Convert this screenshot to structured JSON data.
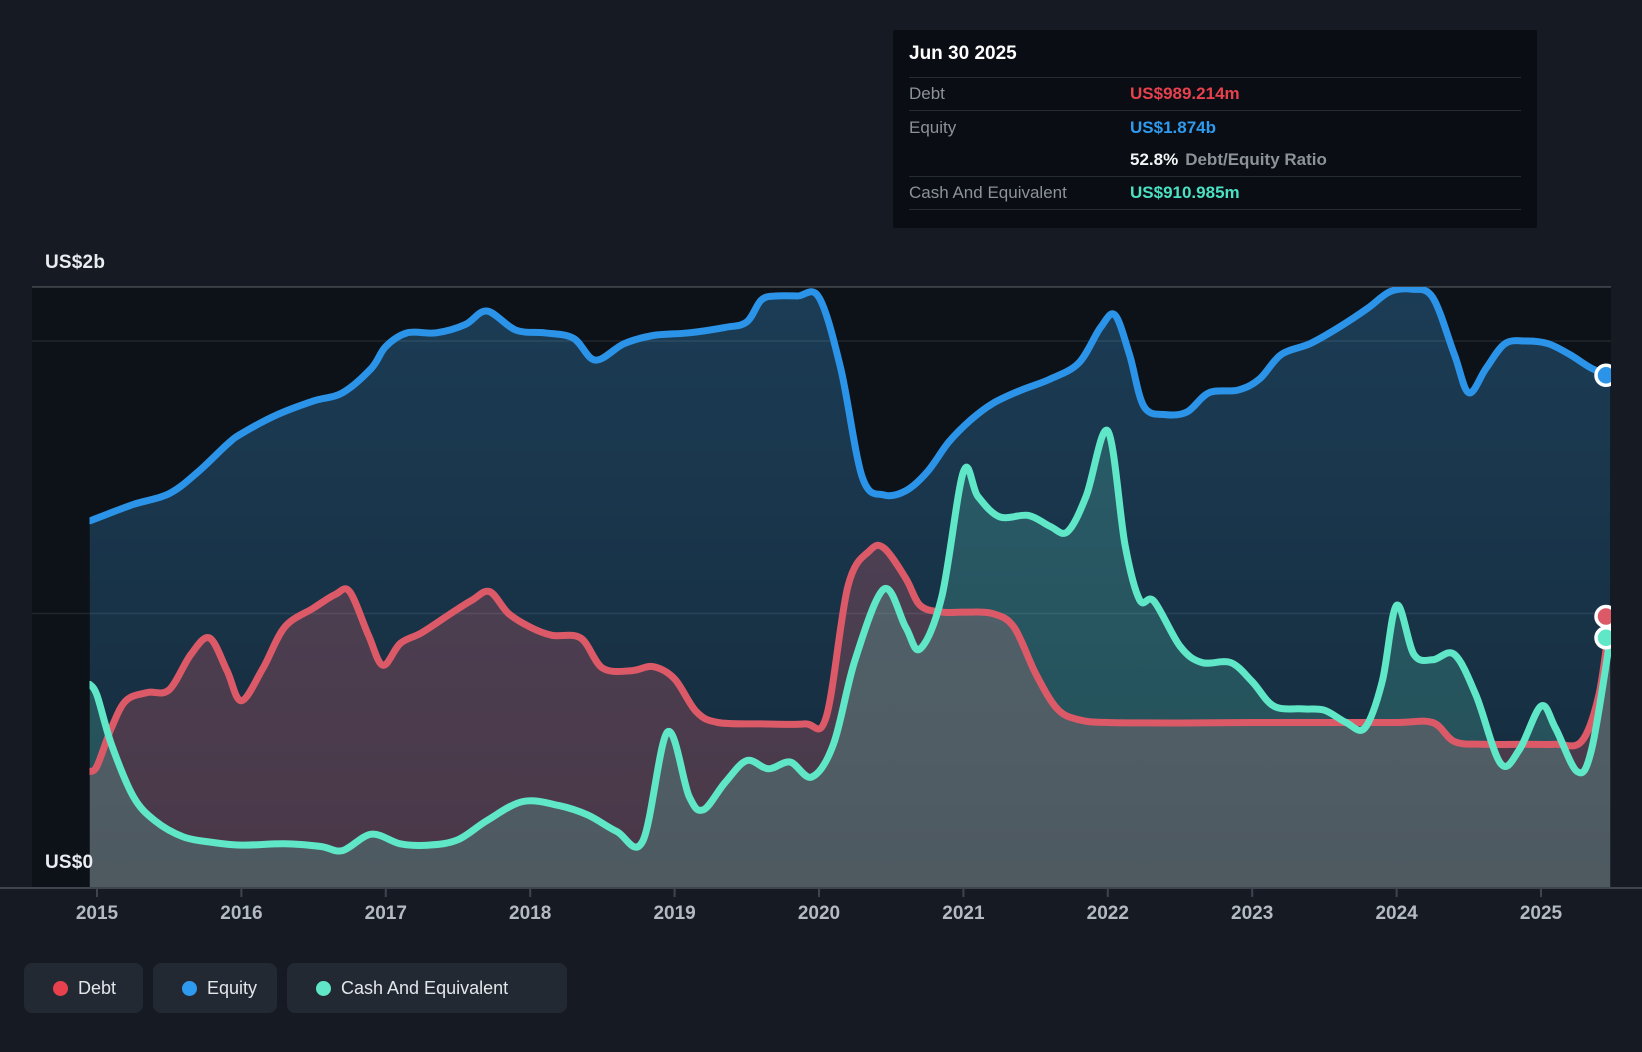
{
  "page": {
    "background": "#151a23",
    "plot_background": "#0d1218"
  },
  "colors": {
    "debt_line": "#dc5a68",
    "debt_accent": "#e6414d",
    "equity_line": "#2b94e8",
    "equity_accent": "#2e9bf0",
    "cash_line": "#5fe7c8",
    "cash_accent": "#4be1c3"
  },
  "tooltip": {
    "date": "Jun 30 2025",
    "debt_label": "Debt",
    "debt_value": "US$989.214m",
    "equity_label": "Equity",
    "equity_value": "US$1.874b",
    "ratio_value": "52.8%",
    "ratio_label": "Debt/Equity Ratio",
    "cash_label": "Cash And Equivalent",
    "cash_value": "US$910.985m"
  },
  "axis": {
    "y_top_label": "US$2b",
    "y_zero_label": "US$0"
  },
  "legend": {
    "debt": "Debt",
    "equity": "Equity",
    "cash": "Cash And Equivalent"
  },
  "chart_data": {
    "type": "area",
    "unit": "US$ billions",
    "xlim": [
      2014.95,
      2025.5
    ],
    "ylim": [
      0,
      2.2
    ],
    "grid": {
      "y_values": [
        0,
        1,
        2
      ],
      "y_labeled": {
        "2": "US$2b",
        "0": "US$0"
      }
    },
    "legend_position": "bottom-left",
    "x_ticks": [
      "2015",
      "2016",
      "2017",
      "2018",
      "2019",
      "2020",
      "2021",
      "2022",
      "2023",
      "2024",
      "2025"
    ],
    "series": [
      {
        "name": "Equity",
        "color": "#2b94e8",
        "points": [
          [
            2014.95,
            1.34
          ],
          [
            2015.0,
            1.35
          ],
          [
            2015.25,
            1.4
          ],
          [
            2015.5,
            1.44
          ],
          [
            2015.7,
            1.52
          ],
          [
            2015.9,
            1.62
          ],
          [
            2016.0,
            1.66
          ],
          [
            2016.25,
            1.73
          ],
          [
            2016.5,
            1.78
          ],
          [
            2016.7,
            1.81
          ],
          [
            2016.9,
            1.9
          ],
          [
            2017.0,
            1.98
          ],
          [
            2017.15,
            2.03
          ],
          [
            2017.35,
            2.03
          ],
          [
            2017.55,
            2.06
          ],
          [
            2017.7,
            2.11
          ],
          [
            2017.9,
            2.04
          ],
          [
            2018.1,
            2.03
          ],
          [
            2018.3,
            2.01
          ],
          [
            2018.45,
            1.93
          ],
          [
            2018.65,
            1.99
          ],
          [
            2018.85,
            2.02
          ],
          [
            2019.1,
            2.03
          ],
          [
            2019.35,
            2.05
          ],
          [
            2019.5,
            2.07
          ],
          [
            2019.6,
            2.15
          ],
          [
            2019.7,
            2.165
          ],
          [
            2019.85,
            2.165
          ],
          [
            2020.0,
            2.16
          ],
          [
            2020.15,
            1.9
          ],
          [
            2020.3,
            1.5
          ],
          [
            2020.45,
            1.435
          ],
          [
            2020.6,
            1.45
          ],
          [
            2020.75,
            1.52
          ],
          [
            2020.9,
            1.63
          ],
          [
            2021.05,
            1.71
          ],
          [
            2021.2,
            1.77
          ],
          [
            2021.4,
            1.82
          ],
          [
            2021.6,
            1.86
          ],
          [
            2021.8,
            1.92
          ],
          [
            2021.95,
            2.05
          ],
          [
            2022.05,
            2.095
          ],
          [
            2022.15,
            1.95
          ],
          [
            2022.25,
            1.76
          ],
          [
            2022.4,
            1.73
          ],
          [
            2022.55,
            1.74
          ],
          [
            2022.7,
            1.81
          ],
          [
            2022.9,
            1.82
          ],
          [
            2023.05,
            1.86
          ],
          [
            2023.2,
            1.95
          ],
          [
            2023.4,
            1.99
          ],
          [
            2023.6,
            2.05
          ],
          [
            2023.8,
            2.12
          ],
          [
            2023.95,
            2.18
          ],
          [
            2024.1,
            2.19
          ],
          [
            2024.25,
            2.16
          ],
          [
            2024.4,
            1.95
          ],
          [
            2024.5,
            1.81
          ],
          [
            2024.62,
            1.9
          ],
          [
            2024.75,
            1.99
          ],
          [
            2024.9,
            2.0
          ],
          [
            2025.05,
            1.99
          ],
          [
            2025.2,
            1.95
          ],
          [
            2025.35,
            1.9
          ],
          [
            2025.48,
            1.874
          ]
        ],
        "end_value": 1.874
      },
      {
        "name": "Debt",
        "color": "#dc5a68",
        "points": [
          [
            2014.95,
            0.42
          ],
          [
            2015.0,
            0.44
          ],
          [
            2015.1,
            0.58
          ],
          [
            2015.2,
            0.68
          ],
          [
            2015.35,
            0.71
          ],
          [
            2015.5,
            0.72
          ],
          [
            2015.65,
            0.85
          ],
          [
            2015.78,
            0.91
          ],
          [
            2015.9,
            0.79
          ],
          [
            2016.0,
            0.68
          ],
          [
            2016.15,
            0.8
          ],
          [
            2016.3,
            0.95
          ],
          [
            2016.5,
            1.02
          ],
          [
            2016.65,
            1.07
          ],
          [
            2016.75,
            1.08
          ],
          [
            2016.88,
            0.92
          ],
          [
            2016.98,
            0.81
          ],
          [
            2017.1,
            0.89
          ],
          [
            2017.25,
            0.93
          ],
          [
            2017.45,
            1.0
          ],
          [
            2017.6,
            1.05
          ],
          [
            2017.72,
            1.08
          ],
          [
            2017.85,
            1.0
          ],
          [
            2018.0,
            0.95
          ],
          [
            2018.15,
            0.92
          ],
          [
            2018.35,
            0.91
          ],
          [
            2018.5,
            0.8
          ],
          [
            2018.7,
            0.79
          ],
          [
            2018.85,
            0.805
          ],
          [
            2019.0,
            0.76
          ],
          [
            2019.15,
            0.64
          ],
          [
            2019.3,
            0.6
          ],
          [
            2019.6,
            0.595
          ],
          [
            2019.9,
            0.595
          ],
          [
            2020.05,
            0.62
          ],
          [
            2020.2,
            1.1
          ],
          [
            2020.35,
            1.23
          ],
          [
            2020.45,
            1.24
          ],
          [
            2020.6,
            1.13
          ],
          [
            2020.7,
            1.03
          ],
          [
            2020.85,
            1.005
          ],
          [
            2021.0,
            1.005
          ],
          [
            2021.2,
            1.0
          ],
          [
            2021.35,
            0.95
          ],
          [
            2021.5,
            0.78
          ],
          [
            2021.65,
            0.65
          ],
          [
            2021.8,
            0.61
          ],
          [
            2022.0,
            0.6
          ],
          [
            2022.5,
            0.598
          ],
          [
            2023.0,
            0.6
          ],
          [
            2023.5,
            0.6
          ],
          [
            2024.0,
            0.6
          ],
          [
            2024.25,
            0.6
          ],
          [
            2024.4,
            0.53
          ],
          [
            2024.6,
            0.52
          ],
          [
            2024.9,
            0.52
          ],
          [
            2025.1,
            0.52
          ],
          [
            2025.28,
            0.53
          ],
          [
            2025.4,
            0.7
          ],
          [
            2025.48,
            0.989
          ]
        ],
        "end_value": 0.989
      },
      {
        "name": "Cash And Equivalent",
        "color": "#5fe7c8",
        "points": [
          [
            2014.95,
            0.74
          ],
          [
            2015.0,
            0.7
          ],
          [
            2015.1,
            0.52
          ],
          [
            2015.25,
            0.33
          ],
          [
            2015.4,
            0.24
          ],
          [
            2015.6,
            0.18
          ],
          [
            2015.8,
            0.16
          ],
          [
            2016.0,
            0.15
          ],
          [
            2016.3,
            0.155
          ],
          [
            2016.55,
            0.145
          ],
          [
            2016.7,
            0.13
          ],
          [
            2016.9,
            0.19
          ],
          [
            2017.1,
            0.155
          ],
          [
            2017.3,
            0.15
          ],
          [
            2017.5,
            0.17
          ],
          [
            2017.7,
            0.24
          ],
          [
            2017.95,
            0.31
          ],
          [
            2018.2,
            0.295
          ],
          [
            2018.4,
            0.26
          ],
          [
            2018.6,
            0.2
          ],
          [
            2018.78,
            0.165
          ],
          [
            2018.95,
            0.565
          ],
          [
            2019.1,
            0.33
          ],
          [
            2019.2,
            0.28
          ],
          [
            2019.35,
            0.38
          ],
          [
            2019.5,
            0.46
          ],
          [
            2019.65,
            0.43
          ],
          [
            2019.8,
            0.455
          ],
          [
            2019.95,
            0.4
          ],
          [
            2020.1,
            0.52
          ],
          [
            2020.25,
            0.83
          ],
          [
            2020.45,
            1.09
          ],
          [
            2020.6,
            0.95
          ],
          [
            2020.7,
            0.87
          ],
          [
            2020.85,
            1.06
          ],
          [
            2021.0,
            1.52
          ],
          [
            2021.1,
            1.43
          ],
          [
            2021.25,
            1.355
          ],
          [
            2021.45,
            1.36
          ],
          [
            2021.6,
            1.32
          ],
          [
            2021.72,
            1.3
          ],
          [
            2021.85,
            1.43
          ],
          [
            2022.0,
            1.67
          ],
          [
            2022.12,
            1.25
          ],
          [
            2022.22,
            1.05
          ],
          [
            2022.32,
            1.045
          ],
          [
            2022.5,
            0.88
          ],
          [
            2022.65,
            0.82
          ],
          [
            2022.85,
            0.82
          ],
          [
            2023.0,
            0.75
          ],
          [
            2023.15,
            0.66
          ],
          [
            2023.35,
            0.65
          ],
          [
            2023.5,
            0.645
          ],
          [
            2023.65,
            0.6
          ],
          [
            2023.78,
            0.58
          ],
          [
            2023.9,
            0.75
          ],
          [
            2024.0,
            1.03
          ],
          [
            2024.12,
            0.85
          ],
          [
            2024.25,
            0.83
          ],
          [
            2024.4,
            0.85
          ],
          [
            2024.55,
            0.7
          ],
          [
            2024.72,
            0.45
          ],
          [
            2024.85,
            0.5
          ],
          [
            2025.0,
            0.66
          ],
          [
            2025.1,
            0.58
          ],
          [
            2025.25,
            0.42
          ],
          [
            2025.35,
            0.5
          ],
          [
            2025.48,
            0.911
          ]
        ],
        "end_value": 0.911
      }
    ]
  }
}
